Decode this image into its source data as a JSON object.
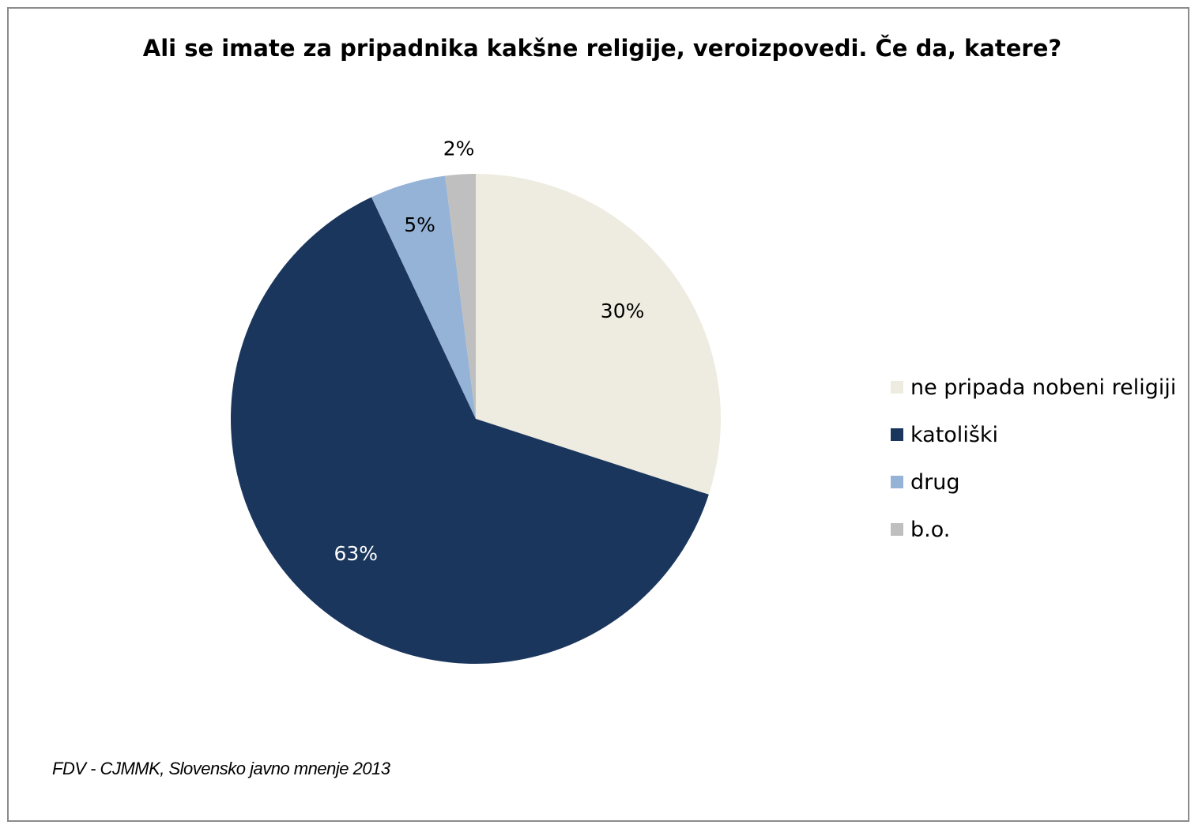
{
  "chart_data": {
    "type": "pie",
    "title": "Ali se imate za pripadnika kakšne religije, veroizpovedi. Če da, katere?",
    "slices": [
      {
        "label": "ne pripada nobeni religiji",
        "value": 30,
        "data_label": "30%",
        "color": "#EEECE1"
      },
      {
        "label": "katoliški",
        "value": 63,
        "data_label": "63%",
        "color": "#1B365D"
      },
      {
        "label": "drug",
        "value": 5,
        "data_label": "5%",
        "color": "#95B3D7"
      },
      {
        "label": "b.o.",
        "value": 2,
        "data_label": "2%",
        "color": "#BFBFBF"
      }
    ],
    "legend_position": "right",
    "source": "FDV - CJMMK, Slovensko javno mnenje 2013"
  }
}
